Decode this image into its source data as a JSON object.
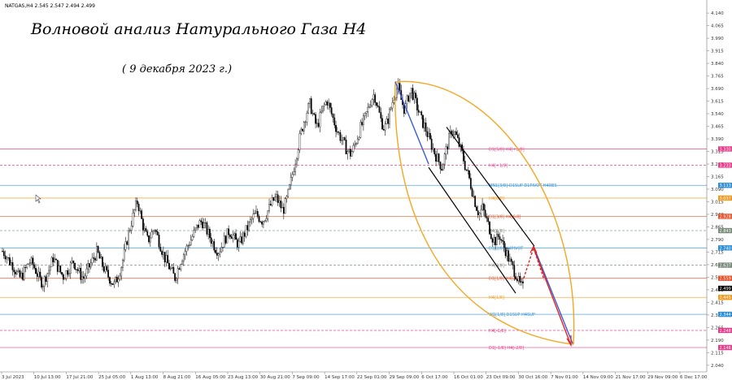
{
  "header": {
    "symbol_text": "NATGAS,H4  2.545 2.547 2.494 2.499"
  },
  "chart_data": {
    "type": "candlestick",
    "title": "Волновой анализ Натурального Газа H4",
    "subtitle": "( 9 декабря 2023 г.)",
    "y_ticks": [
      "4.140",
      "4.065",
      "3.990",
      "3.915",
      "3.840",
      "3.765",
      "3.690",
      "3.615",
      "3.540",
      "3.465",
      "3.390",
      "3.315",
      "3.240",
      "3.165",
      "3.090",
      "3.015",
      "2.940",
      "2.865",
      "2.790",
      "2.715",
      "2.640",
      "2.565",
      "2.490",
      "2.415",
      "2.340",
      "2.265",
      "2.190",
      "2.115",
      "2.040"
    ],
    "ylim": [
      2.025,
      4.155
    ],
    "x_ticks": [
      "3 Jul 2023",
      "10 Jul 13:00",
      "17 Jul 21:00",
      "25 Jul 05:00",
      "1 Aug 13:00",
      "8 Aug 21:00",
      "16 Aug 05:00",
      "23 Aug 13:00",
      "30 Aug 21:00",
      "7 Sep 09:00",
      "14 Sep 17:00",
      "22 Sep 01:00",
      "29 Sep 09:00",
      "6 Oct 17:00",
      "16 Oct 01:00",
      "23 Oct 09:00",
      "30 Oct 16:00",
      "7 Nov 01:00",
      "14 Nov 09:00",
      "21 Nov 17:00",
      "29 Nov 09:00",
      "6 Dec 17:00"
    ],
    "price_path": [
      2.72,
      2.7,
      2.66,
      2.64,
      2.6,
      2.56,
      2.58,
      2.62,
      2.66,
      2.64,
      2.6,
      2.55,
      2.53,
      2.58,
      2.62,
      2.68,
      2.64,
      2.6,
      2.57,
      2.6,
      2.63,
      2.66,
      2.62,
      2.58,
      2.56,
      2.6,
      2.64,
      2.68,
      2.72,
      2.66,
      2.62,
      2.58,
      2.55,
      2.52,
      2.56,
      2.62,
      2.7,
      2.8,
      2.88,
      2.96,
      3.02,
      2.92,
      2.84,
      2.78,
      2.82,
      2.86,
      2.8,
      2.74,
      2.68,
      2.64,
      2.6,
      2.56,
      2.62,
      2.68,
      2.72,
      2.76,
      2.8,
      2.84,
      2.88,
      2.9,
      2.86,
      2.82,
      2.78,
      2.74,
      2.72,
      2.76,
      2.8,
      2.84,
      2.82,
      2.78,
      2.76,
      2.8,
      2.84,
      2.88,
      2.92,
      2.94,
      2.92,
      2.9,
      2.94,
      2.98,
      3.02,
      3.04,
      3.0,
      2.96,
      3.02,
      3.1,
      3.2,
      3.3,
      3.4,
      3.48,
      3.55,
      3.6,
      3.52,
      3.46,
      3.52,
      3.58,
      3.62,
      3.56,
      3.5,
      3.44,
      3.4,
      3.36,
      3.32,
      3.3,
      3.34,
      3.4,
      3.46,
      3.5,
      3.56,
      3.62,
      3.66,
      3.58,
      3.5,
      3.45,
      3.5,
      3.58,
      3.66,
      3.7,
      3.62,
      3.56,
      3.64,
      3.68,
      3.62,
      3.56,
      3.5,
      3.46,
      3.4,
      3.35,
      3.3,
      3.26,
      3.22,
      3.3,
      3.38,
      3.44,
      3.42,
      3.36,
      3.3,
      3.22,
      3.16,
      3.08,
      3.0,
      2.94,
      2.98,
      2.92,
      2.86,
      2.8,
      2.78,
      2.82,
      2.76,
      2.72,
      2.66,
      2.62,
      2.58,
      2.52,
      2.5
    ],
    "levels": [
      {
        "price": 3.33,
        "color": "#e83c8a",
        "label": "D1[5/8] H4[+2/8]",
        "dashed": false
      },
      {
        "price": 3.233,
        "color": "#e83c8a",
        "label": "H4[+1/8]",
        "dashed": true
      },
      {
        "price": 3.113,
        "color": "#2f8fd6",
        "label": "MN1[3/8]-D1SUP D1PIVOT H4RES",
        "dashed": false
      },
      {
        "price": 3.037,
        "color": "#f29b1f",
        "label": "H4[8/8]",
        "dashed": false
      },
      {
        "price": 2.928,
        "color": "#e8502a",
        "label": "D1[3/8] H4[6/8]",
        "dashed": false
      },
      {
        "price": 2.843,
        "color": "#7a8a7a",
        "label": "H4[5/8]",
        "dashed": true
      },
      {
        "price": 2.74,
        "color": "#2f8fd6",
        "label": "D1[2/8] H4PIVOT",
        "dashed": false
      },
      {
        "price": 2.637,
        "color": "#7a8a7a",
        "label": "H4[3/8]",
        "dashed": true
      },
      {
        "price": 2.559,
        "color": "#e8502a",
        "label": "D1[1/8] H4[2/8]",
        "dashed": false
      },
      {
        "price": 2.445,
        "color": "#f29b1f",
        "label": "H4[1/8]",
        "dashed": false
      },
      {
        "price": 2.344,
        "color": "#2f8fd6",
        "label": "W1[1/8] D1SUP H4SUP",
        "dashed": false
      },
      {
        "price": 2.248,
        "color": "#e83c8a",
        "label": "H4[-1/8]",
        "dashed": true
      },
      {
        "price": 2.146,
        "color": "#e83c8a",
        "label": "D1[-1/8] H4[-2/8]",
        "dashed": false
      }
    ],
    "current_price": 2.499,
    "price_tags": [
      {
        "price": 3.33,
        "text": "3.330",
        "color": "#e83c8a"
      },
      {
        "price": 3.233,
        "text": "3.233",
        "color": "#e83c8a"
      },
      {
        "price": 3.113,
        "text": "3.113",
        "color": "#2f8fd6"
      },
      {
        "price": 3.037,
        "text": "3.037",
        "color": "#f29b1f"
      },
      {
        "price": 2.928,
        "text": "2.928",
        "color": "#e8502a"
      },
      {
        "price": 2.843,
        "text": "2.843",
        "color": "#7a8a7a"
      },
      {
        "price": 2.74,
        "text": "2.740",
        "color": "#2f8fd6"
      },
      {
        "price": 2.637,
        "text": "2.637",
        "color": "#7a8a7a"
      },
      {
        "price": 2.559,
        "text": "2.559",
        "color": "#e8502a"
      },
      {
        "price": 2.499,
        "text": "2.499",
        "color": "#000000"
      },
      {
        "price": 2.445,
        "text": "2.445",
        "color": "#f29b1f"
      },
      {
        "price": 2.344,
        "text": "2.344",
        "color": "#2f8fd6"
      },
      {
        "price": 2.248,
        "text": "2.248",
        "color": "#e83c8a"
      },
      {
        "price": 2.146,
        "text": "2.146",
        "color": "#e83c8a"
      }
    ],
    "colors": {
      "candle": "#000000",
      "channel": "#000000",
      "fan": "#f5a623",
      "trend": "#3b5bd6",
      "forecast": "#e02424"
    },
    "grid": false
  }
}
